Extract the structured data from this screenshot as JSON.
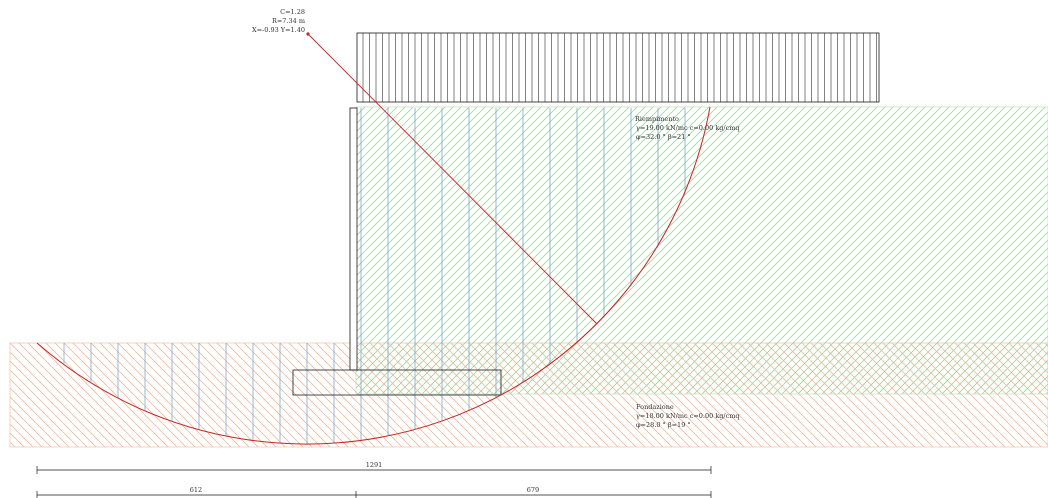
{
  "circle_info": {
    "line1": "C=1.28",
    "line2": "R=7.34 m",
    "line3": "X=-0.93  Y=1.40"
  },
  "materials": {
    "backfill": {
      "name": "Riempimento",
      "props1": "γ=19.00 kN/mc   c=0.00 kg/cmq",
      "props2": "φ=32.0 °  β=21 °"
    },
    "foundation": {
      "name": "Fondazione",
      "props1": "γ=18.00 kN/mc   c=0.00 kg/cmq",
      "props2": "φ=28.0 °  β=19 °"
    }
  },
  "dimensions": {
    "total": "1291",
    "left": "612",
    "right": "679"
  },
  "colors": {
    "backfill_hatch": "#9fd49f",
    "foundation_hatch": "#f2b99a",
    "slice_lines": "#6a9ec9",
    "slip_circle": "#cc2222",
    "structure": "#1a1a1a"
  }
}
